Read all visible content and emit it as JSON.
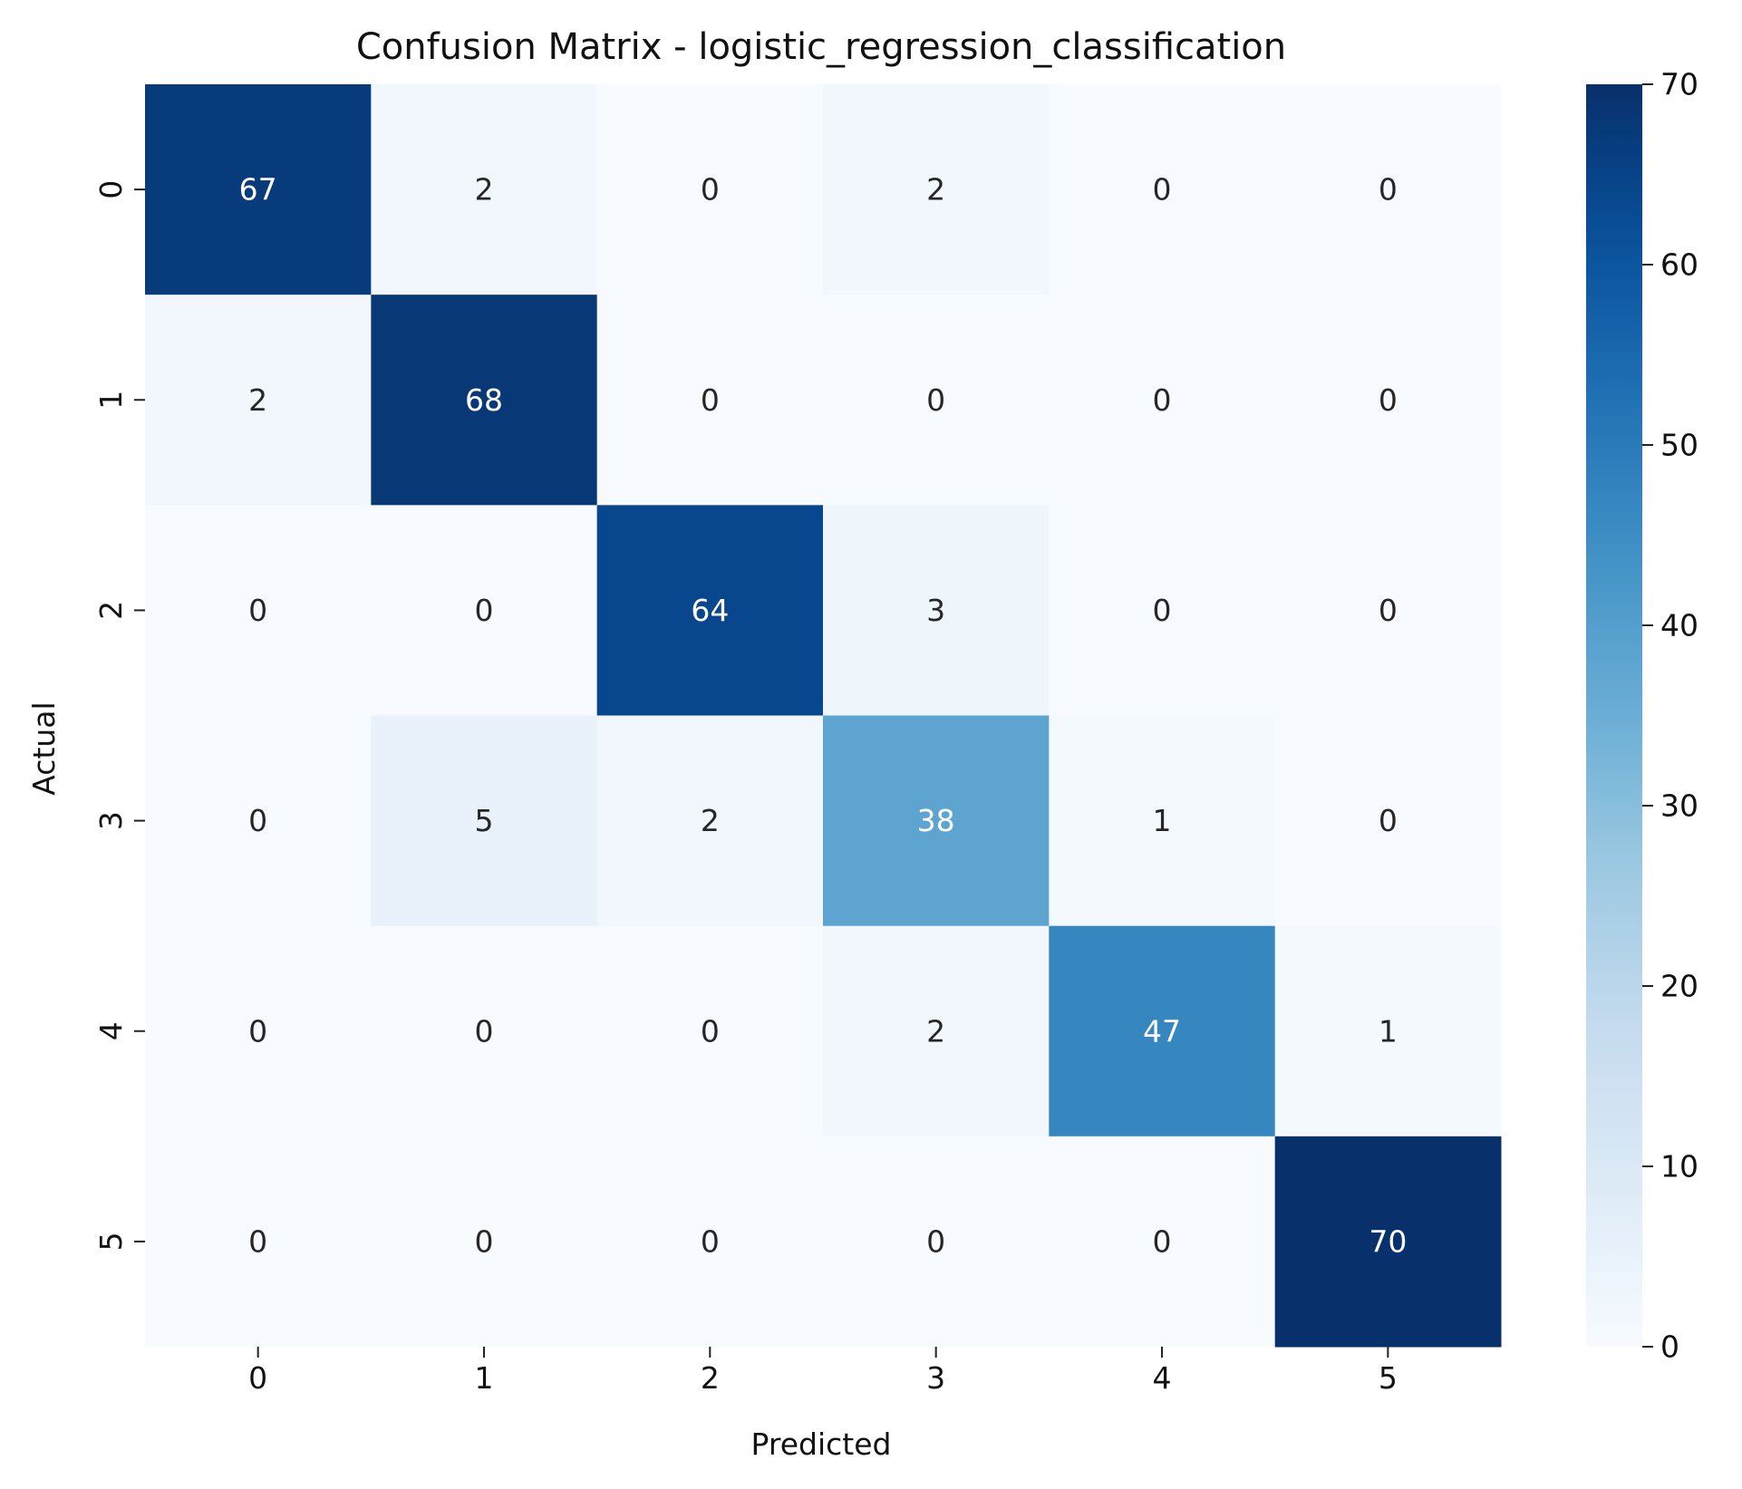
{
  "chart_data": {
    "type": "heatmap",
    "title": "Confusion Matrix - logistic_regression_classification",
    "xlabel": "Predicted",
    "ylabel": "Actual",
    "x_categories": [
      "0",
      "1",
      "2",
      "3",
      "4",
      "5"
    ],
    "y_categories": [
      "0",
      "1",
      "2",
      "3",
      "4",
      "5"
    ],
    "matrix": [
      [
        67,
        2,
        0,
        2,
        0,
        0
      ],
      [
        2,
        68,
        0,
        0,
        0,
        0
      ],
      [
        0,
        0,
        64,
        3,
        0,
        0
      ],
      [
        0,
        5,
        2,
        38,
        1,
        0
      ],
      [
        0,
        0,
        0,
        2,
        47,
        1
      ],
      [
        0,
        0,
        0,
        0,
        0,
        70
      ]
    ],
    "colorscale": "Blues",
    "colorbar": {
      "min": 0,
      "max": 70,
      "ticks": [
        "0",
        "10",
        "20",
        "30",
        "40",
        "50",
        "60",
        "70"
      ]
    },
    "grid": false,
    "legend": "colorbar-right"
  }
}
